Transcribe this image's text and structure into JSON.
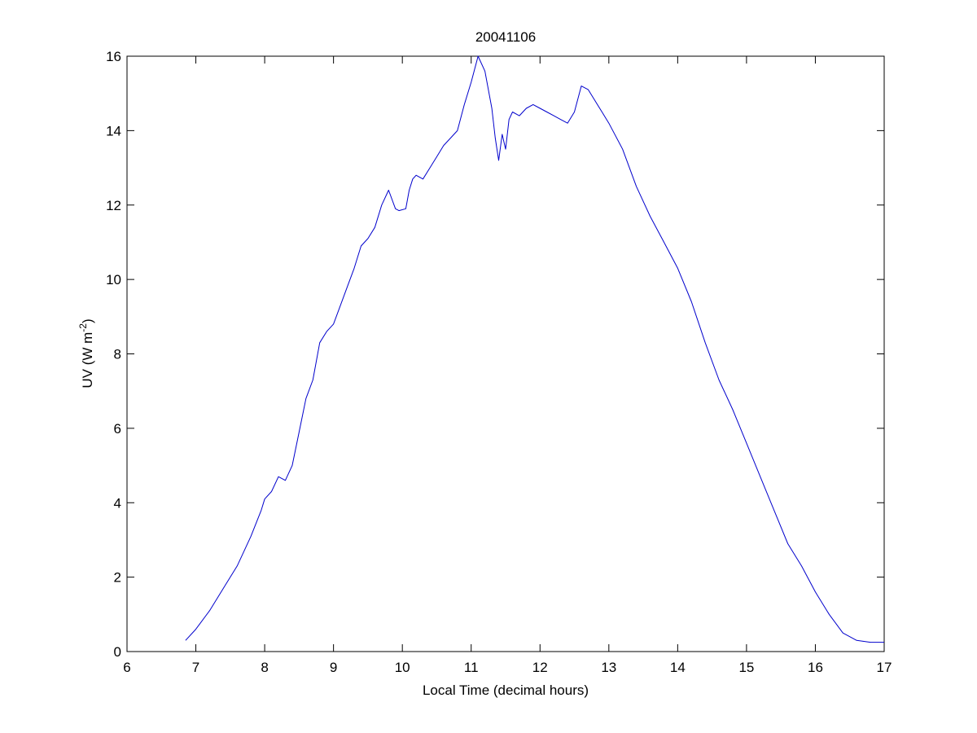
{
  "chart_data": {
    "type": "line",
    "title": "20041106",
    "xlabel": "Local Time (decimal hours)",
    "ylabel_main": "UV (W m",
    "ylabel_sup": "-2",
    "ylabel_close": ")",
    "xlim": [
      6,
      17
    ],
    "ylim": [
      0,
      16
    ],
    "xticks": [
      6,
      7,
      8,
      9,
      10,
      11,
      12,
      13,
      14,
      15,
      16,
      17
    ],
    "yticks": [
      0,
      2,
      4,
      6,
      8,
      10,
      12,
      14,
      16
    ],
    "grid": false,
    "line_color": "#0000cc",
    "series": [
      {
        "x": [
          6.85,
          7.0,
          7.2,
          7.4,
          7.6,
          7.8,
          7.95,
          8.0,
          8.1,
          8.2,
          8.3,
          8.4,
          8.5,
          8.6,
          8.7,
          8.8,
          8.9,
          9.0,
          9.1,
          9.2,
          9.3,
          9.4,
          9.5,
          9.6,
          9.7,
          9.8,
          9.9,
          9.95,
          10.05,
          10.1,
          10.15,
          10.2,
          10.3,
          10.4,
          10.5,
          10.6,
          10.7,
          10.8,
          10.9,
          11.0,
          11.1,
          11.2,
          11.3,
          11.35,
          11.4,
          11.45,
          11.5,
          11.55,
          11.6,
          11.7,
          11.8,
          11.9,
          12.0,
          12.1,
          12.2,
          12.3,
          12.4,
          12.5,
          12.6,
          12.7,
          12.8,
          12.9,
          13.0,
          13.2,
          13.4,
          13.6,
          13.8,
          14.0,
          14.2,
          14.4,
          14.6,
          14.8,
          15.0,
          15.2,
          15.4,
          15.6,
          15.8,
          16.0,
          16.2,
          16.4,
          16.6,
          16.8,
          17.0
        ],
        "y": [
          0.3,
          0.6,
          1.1,
          1.7,
          2.3,
          3.1,
          3.8,
          4.1,
          4.3,
          4.7,
          4.6,
          5.0,
          5.9,
          6.8,
          7.3,
          8.3,
          8.6,
          8.8,
          9.3,
          9.8,
          10.3,
          10.9,
          11.1,
          11.4,
          12.0,
          12.4,
          11.9,
          11.85,
          11.9,
          12.4,
          12.7,
          12.8,
          12.7,
          13.0,
          13.3,
          13.6,
          13.8,
          14.0,
          14.7,
          15.3,
          16.0,
          15.6,
          14.6,
          13.8,
          13.2,
          13.9,
          13.5,
          14.3,
          14.5,
          14.4,
          14.6,
          14.7,
          14.6,
          14.5,
          14.4,
          14.3,
          14.2,
          14.5,
          15.2,
          15.1,
          14.8,
          14.5,
          14.2,
          13.5,
          12.5,
          11.7,
          11.0,
          10.3,
          9.4,
          8.3,
          7.3,
          6.5,
          5.6,
          4.7,
          3.8,
          2.9,
          2.3,
          1.6,
          1.0,
          0.5,
          0.3,
          0.25,
          0.25
        ]
      }
    ]
  }
}
